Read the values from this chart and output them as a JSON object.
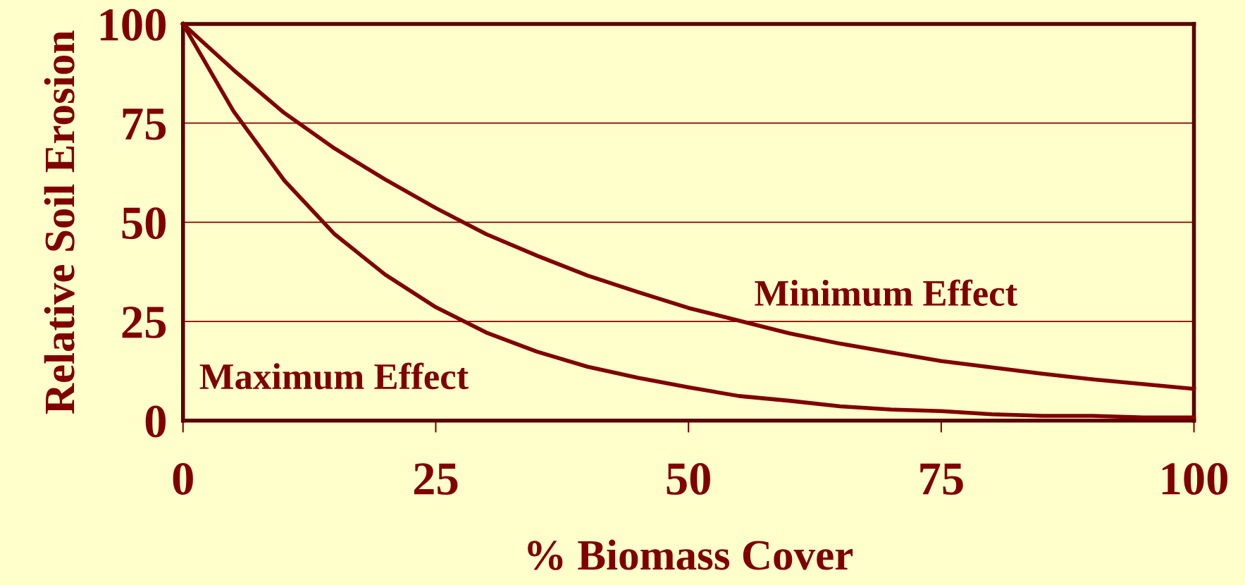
{
  "chart_data": {
    "type": "line",
    "xlabel": "% Biomass Cover",
    "ylabel": "Relative Soil Erosion",
    "xlim": [
      0,
      100
    ],
    "ylim": [
      0,
      100
    ],
    "xticks": [
      0,
      25,
      50,
      75,
      100
    ],
    "yticks": [
      0,
      25,
      50,
      75,
      100
    ],
    "grid": "y",
    "legend": false,
    "marker": "none",
    "line_style": "solid",
    "series": [
      {
        "name": "Minimum Effect",
        "color": "#800000",
        "x": [
          0,
          5,
          10,
          15,
          20,
          25,
          30,
          35,
          40,
          45,
          50,
          55,
          60,
          65,
          70,
          75,
          80,
          85,
          90,
          95,
          100
        ],
        "values": [
          100,
          88.4,
          77.6,
          68.6,
          60.8,
          53.6,
          47,
          41.6,
          36.6,
          32.4,
          28.4,
          25.2,
          22,
          19.4,
          17.2,
          15,
          13.4,
          11.8,
          10.4,
          9.2,
          8
        ]
      },
      {
        "name": "Maximum Effect",
        "color": "#800000",
        "x": [
          0,
          5,
          10,
          15,
          20,
          25,
          30,
          35,
          40,
          45,
          50,
          55,
          60,
          65,
          70,
          75,
          80,
          85,
          90,
          95,
          100
        ],
        "values": [
          100,
          78,
          60.6,
          47,
          36.8,
          28.6,
          22.2,
          17.4,
          13.6,
          10.8,
          8.4,
          6.2,
          5,
          3.6,
          2.8,
          2.4,
          1.6,
          1.2,
          1.2,
          0.8,
          0.8
        ]
      }
    ]
  }
}
